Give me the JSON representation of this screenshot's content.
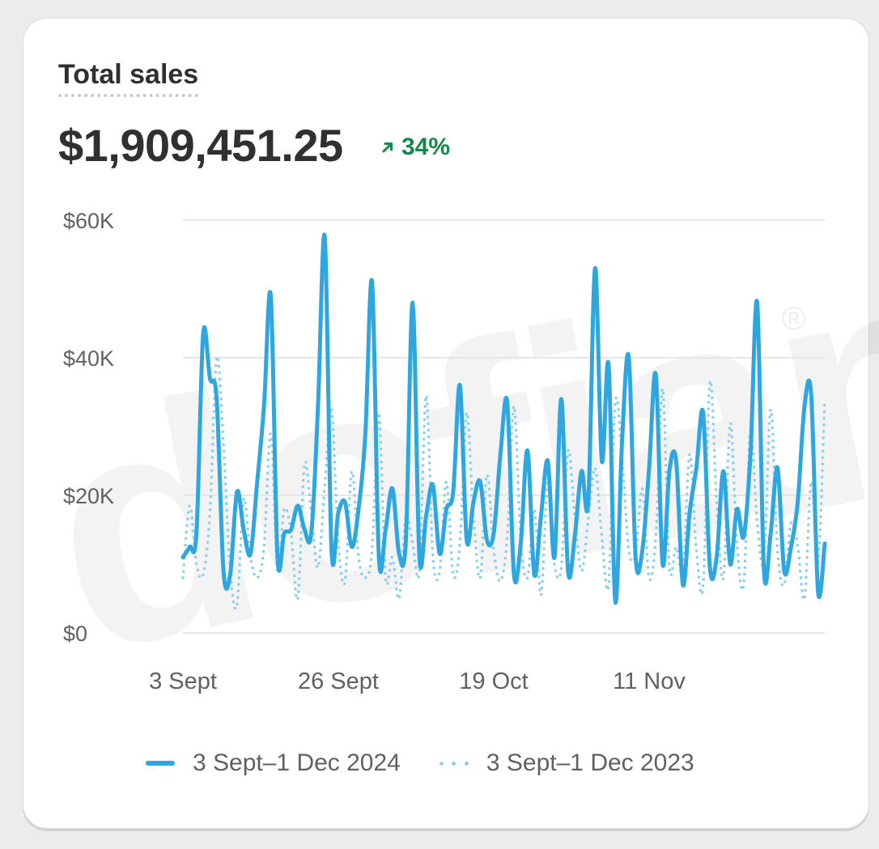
{
  "card": {
    "title": "Total sales",
    "total_value": "$1,909,451.25",
    "change_percent": "34%",
    "change_icon": "arrow-up-right-icon",
    "change_color": "#0f8a4a"
  },
  "watermark": {
    "text": "dofiant.",
    "mark": "®"
  },
  "legend": [
    {
      "label": "3 Sept–1 Dec 2024",
      "style": "solid",
      "color": "#2ea7e0"
    },
    {
      "label": "3 Sept–1 Dec 2023",
      "style": "dotted",
      "color": "#8fcfee"
    }
  ],
  "chart_data": {
    "type": "line",
    "ylim": [
      0,
      60000
    ],
    "y_ticks": [
      {
        "value": 0,
        "label": "$0"
      },
      {
        "value": 20000,
        "label": "$20K"
      },
      {
        "value": 40000,
        "label": "$40K"
      },
      {
        "value": 60000,
        "label": "$60K"
      }
    ],
    "x_ticks": [
      {
        "index": 0,
        "label": "3 Sept"
      },
      {
        "index": 23,
        "label": "26 Sept"
      },
      {
        "index": 46,
        "label": "19 Oct"
      },
      {
        "index": 69,
        "label": "11 Nov"
      }
    ],
    "grid": true,
    "legend_position": "bottom",
    "series": [
      {
        "name": "3 Sept–1 Dec 2024",
        "style": "solid",
        "color": "#2ea7e0",
        "values": [
          11000,
          12500,
          14500,
          43500,
          37000,
          34000,
          9000,
          8500,
          20500,
          15000,
          11500,
          22000,
          33000,
          49000,
          11000,
          14500,
          15000,
          18500,
          15000,
          14500,
          33000,
          57500,
          12000,
          17500,
          19000,
          12500,
          18000,
          29000,
          51000,
          11000,
          15000,
          21000,
          11500,
          13500,
          48000,
          11000,
          17000,
          21500,
          11500,
          18000,
          20500,
          36000,
          13500,
          19000,
          22000,
          13500,
          14500,
          26000,
          33500,
          8500,
          13000,
          26500,
          8500,
          17000,
          25000,
          11000,
          34000,
          9000,
          14000,
          23500,
          19000,
          53000,
          25000,
          39000,
          4500,
          28000,
          40000,
          11000,
          12000,
          24000,
          37500,
          10000,
          23500,
          25000,
          7000,
          17500,
          24000,
          32000,
          9500,
          11000,
          23500,
          10000,
          18000,
          14000,
          26000,
          48000,
          9000,
          14500,
          24000,
          9000,
          12500,
          19000,
          33000,
          34500,
          6000,
          13000
        ]
      },
      {
        "name": "3 Sept–1 Dec 2023",
        "style": "dotted",
        "color": "#8fcfee",
        "values": [
          8000,
          18500,
          10000,
          8500,
          17500,
          40000,
          27500,
          9000,
          4000,
          19500,
          11000,
          8000,
          12500,
          29000,
          9000,
          18000,
          14500,
          5000,
          24500,
          17500,
          9500,
          21500,
          32500,
          13000,
          7500,
          23500,
          11000,
          8000,
          12000,
          32000,
          8000,
          11000,
          5000,
          17000,
          13000,
          9000,
          34500,
          11000,
          9000,
          22000,
          8500,
          13000,
          32000,
          17000,
          8000,
          23000,
          12000,
          7500,
          14000,
          33000,
          13500,
          8000,
          18000,
          5500,
          22000,
          10000,
          9500,
          26500,
          17000,
          9000,
          16500,
          24000,
          14000,
          7000,
          33500,
          25500,
          12000,
          11500,
          21000,
          8000,
          14000,
          35500,
          9500,
          12500,
          9000,
          26000,
          12000,
          7000,
          36500,
          19000,
          8000,
          30500,
          13000,
          7000,
          29500,
          16000,
          10500,
          32500,
          12000,
          7000,
          16000,
          12500,
          5000,
          22000,
          10000,
          34000
        ]
      }
    ]
  }
}
